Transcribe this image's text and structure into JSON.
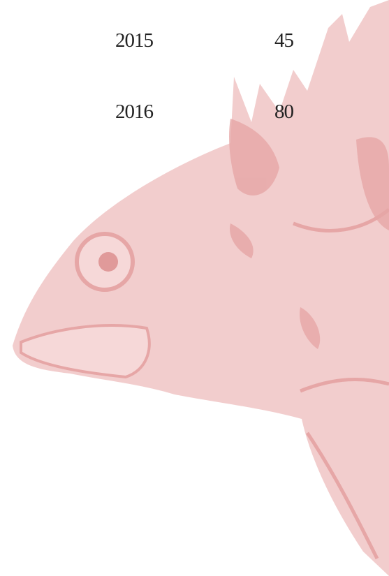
{
  "table": {
    "rows": [
      [
        2015,
        45
      ],
      [
        2016,
        80
      ]
    ]
  }
}
